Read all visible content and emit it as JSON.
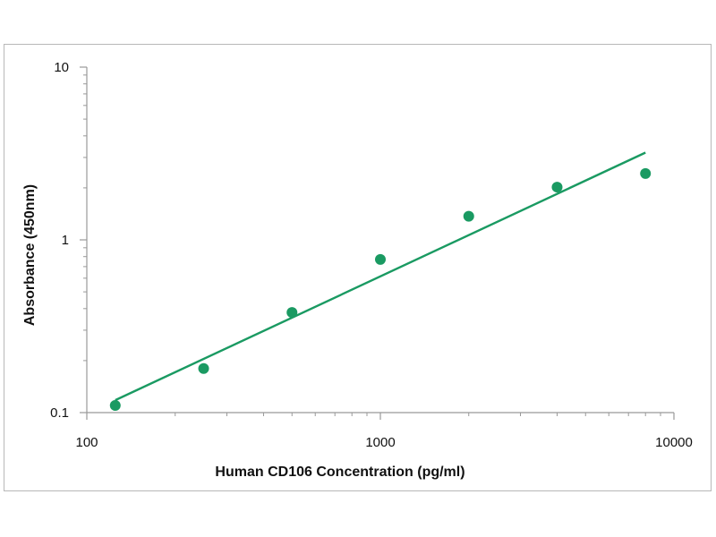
{
  "chart_data": {
    "type": "scatter",
    "title": "",
    "xlabel": "Human CD106 Concentration (pg/ml)",
    "ylabel": "Absorbance (450nm)",
    "x_scale": "log",
    "y_scale": "log",
    "xlim": [
      100,
      10000
    ],
    "ylim": [
      0.1,
      10
    ],
    "x_ticks": [
      100,
      1000,
      10000
    ],
    "x_tick_labels": [
      "100",
      "1000",
      "10000"
    ],
    "y_ticks": [
      0.1,
      1,
      10
    ],
    "y_tick_labels": [
      "0.1",
      "1",
      "10"
    ],
    "grid": false,
    "legend": "none",
    "series": [
      {
        "type": "scatter",
        "x": [
          125,
          250,
          500,
          1000,
          2000,
          4000,
          8000
        ],
        "y": [
          0.11,
          0.18,
          0.38,
          0.77,
          1.37,
          2.02,
          2.42
        ],
        "color": "#1a9a62"
      },
      {
        "type": "line",
        "x": [
          125,
          8000
        ],
        "y": [
          0.118,
          3.2
        ],
        "color": "#1a9a62"
      }
    ]
  }
}
